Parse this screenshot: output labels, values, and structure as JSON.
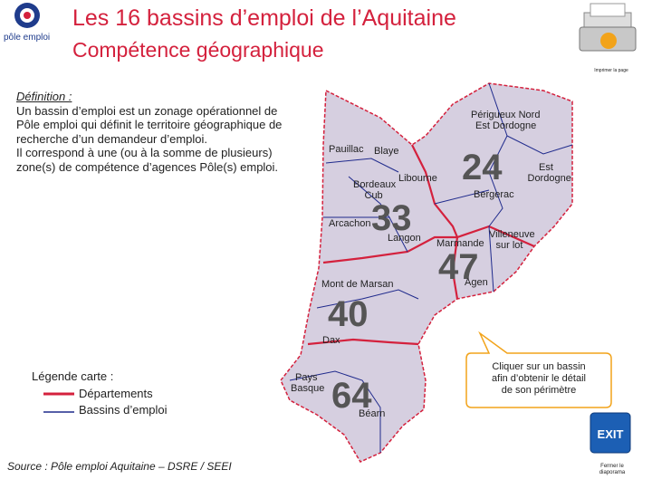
{
  "header": {
    "logo": "pôle emploi",
    "title": "Les 16 bassins d’emploi de l’Aquitaine",
    "subtitle": "Compétence géographique"
  },
  "print_button": {
    "label": "Imprimer la page"
  },
  "definition": {
    "label": "Définition :",
    "lines": [
      "Un bassin d’emploi est un zonage opérationnel de",
      "Pôle emploi qui définit le territoire géographique de",
      "recherche d’un demandeur d’emploi.",
      "Il correspond à une (ou à la somme de plusieurs)",
      "zone(s) de compétence d’agences Pôle(s) emploi."
    ]
  },
  "map": {
    "departments": [
      "24",
      "33",
      "47",
      "40",
      "64"
    ],
    "basins": [
      [
        "Périgueux Nord",
        "Est Dordogne"
      ],
      [
        "Pauillac"
      ],
      [
        "Blaye"
      ],
      [
        "Est",
        "Dordogne"
      ],
      [
        "Libourne"
      ],
      [
        "Bordeaux",
        "Cub"
      ],
      [
        "Bergerac"
      ],
      [
        "Arcachon"
      ],
      [
        "Langon"
      ],
      [
        "Marmande"
      ],
      [
        "Villeneuve",
        "sur lot"
      ],
      [
        "Agen"
      ],
      [
        "Mont de Marsan"
      ],
      [
        "Dax"
      ],
      [
        "Pays",
        "Basque"
      ],
      [
        "Béarn"
      ]
    ]
  },
  "legend": {
    "title": "Légende carte :",
    "items": [
      "Départements",
      "Bassins d’emploi"
    ]
  },
  "callout": [
    "Cliquer sur un bassin",
    "afin d’obtenir le détail",
    "de son périmètre"
  ],
  "exit_button": {
    "icon": "EXIT",
    "label": [
      "Fermer le",
      "diaporama"
    ]
  },
  "source": "Source : Pôle emploi Aquitaine – DSRE / SEEI"
}
